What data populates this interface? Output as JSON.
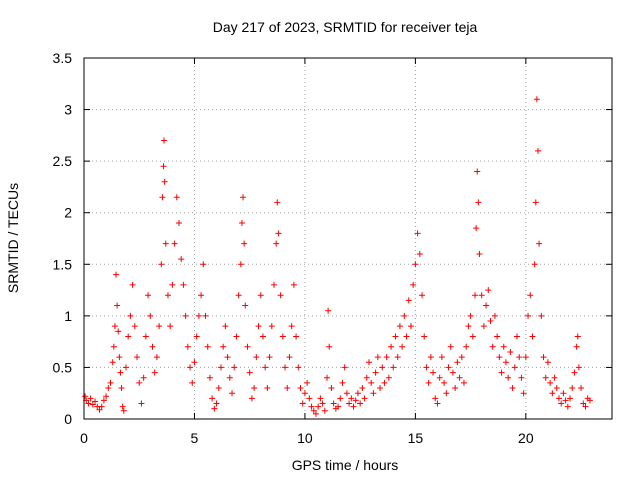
{
  "colors": {
    "series": "#ff0000",
    "frame": "#000000",
    "grid": "#a0a0a0"
  },
  "chart_data": {
    "type": "scatter",
    "title": "Day 217 of 2023, SRMTID for receiver teja",
    "xlabel": "GPS time / hours",
    "ylabel": "SRMTID / TECUs",
    "xlim": [
      0,
      23.9
    ],
    "ylim": [
      0,
      3.5
    ],
    "x_ticks": [
      0,
      5,
      10,
      15,
      20
    ],
    "x_tick_labels": [
      "0",
      "5",
      "10",
      "15",
      "20"
    ],
    "y_ticks": [
      0,
      0.5,
      1,
      1.5,
      2,
      2.5,
      3,
      3.5
    ],
    "y_tick_labels": [
      "0",
      "0.5",
      "1",
      "1.5",
      "2",
      "2.5",
      "3",
      "3.5"
    ],
    "grid": true,
    "marker": "plus",
    "series": [
      {
        "name": "SRMTID",
        "points": [
          [
            0.05,
            0.22
          ],
          [
            0.1,
            0.18
          ],
          [
            0.2,
            0.15
          ],
          [
            0.3,
            0.2
          ],
          [
            0.4,
            0.14
          ],
          [
            0.5,
            0.17
          ],
          [
            0.6,
            0.12
          ],
          [
            0.7,
            0.09
          ],
          [
            0.8,
            0.12
          ],
          [
            0.9,
            0.18
          ],
          [
            1.0,
            0.22
          ],
          [
            1.1,
            0.3
          ],
          [
            1.2,
            0.35
          ],
          [
            1.3,
            0.55
          ],
          [
            1.35,
            0.7
          ],
          [
            1.4,
            0.9
          ],
          [
            1.45,
            1.4
          ],
          [
            1.5,
            1.1
          ],
          [
            1.55,
            0.85
          ],
          [
            1.6,
            0.6
          ],
          [
            1.65,
            0.45
          ],
          [
            1.7,
            0.3
          ],
          [
            1.75,
            0.12
          ],
          [
            1.8,
            0.08
          ],
          [
            1.9,
            0.5
          ],
          [
            2.0,
            0.8
          ],
          [
            2.1,
            1.0
          ],
          [
            2.2,
            1.3
          ],
          [
            2.3,
            0.9
          ],
          [
            2.4,
            0.6
          ],
          [
            2.5,
            0.35
          ],
          [
            2.6,
            0.15
          ],
          [
            2.7,
            0.4
          ],
          [
            2.8,
            0.8
          ],
          [
            2.9,
            1.2
          ],
          [
            3.0,
            1.0
          ],
          [
            3.1,
            0.7
          ],
          [
            3.2,
            0.45
          ],
          [
            3.3,
            0.6
          ],
          [
            3.4,
            0.9
          ],
          [
            3.5,
            1.5
          ],
          [
            3.55,
            2.15
          ],
          [
            3.6,
            2.45
          ],
          [
            3.62,
            2.7
          ],
          [
            3.65,
            2.3
          ],
          [
            3.7,
            1.7
          ],
          [
            3.8,
            1.2
          ],
          [
            3.9,
            0.9
          ],
          [
            4.0,
            1.3
          ],
          [
            4.1,
            1.7
          ],
          [
            4.2,
            2.15
          ],
          [
            4.3,
            1.9
          ],
          [
            4.4,
            1.55
          ],
          [
            4.5,
            1.3
          ],
          [
            4.6,
            1.0
          ],
          [
            4.7,
            0.7
          ],
          [
            4.8,
            0.5
          ],
          [
            4.9,
            0.35
          ],
          [
            5.0,
            0.55
          ],
          [
            5.1,
            0.8
          ],
          [
            5.2,
            1.0
          ],
          [
            5.3,
            1.2
          ],
          [
            5.4,
            1.5
          ],
          [
            5.5,
            1.0
          ],
          [
            5.6,
            0.7
          ],
          [
            5.7,
            0.4
          ],
          [
            5.8,
            0.2
          ],
          [
            5.9,
            0.1
          ],
          [
            6.0,
            0.15
          ],
          [
            6.1,
            0.3
          ],
          [
            6.2,
            0.5
          ],
          [
            6.3,
            0.7
          ],
          [
            6.4,
            0.9
          ],
          [
            6.5,
            0.6
          ],
          [
            6.6,
            0.4
          ],
          [
            6.7,
            0.25
          ],
          [
            6.8,
            0.5
          ],
          [
            6.9,
            0.8
          ],
          [
            7.0,
            1.2
          ],
          [
            7.1,
            1.5
          ],
          [
            7.15,
            1.9
          ],
          [
            7.2,
            2.15
          ],
          [
            7.25,
            1.7
          ],
          [
            7.3,
            1.1
          ],
          [
            7.4,
            0.7
          ],
          [
            7.5,
            0.45
          ],
          [
            7.6,
            0.2
          ],
          [
            7.7,
            0.3
          ],
          [
            7.8,
            0.6
          ],
          [
            7.9,
            0.9
          ],
          [
            8.0,
            1.2
          ],
          [
            8.1,
            0.8
          ],
          [
            8.2,
            0.5
          ],
          [
            8.3,
            0.3
          ],
          [
            8.4,
            0.6
          ],
          [
            8.5,
            0.9
          ],
          [
            8.6,
            1.3
          ],
          [
            8.7,
            1.7
          ],
          [
            8.75,
            2.1
          ],
          [
            8.8,
            1.8
          ],
          [
            8.9,
            1.2
          ],
          [
            9.0,
            0.8
          ],
          [
            9.1,
            0.5
          ],
          [
            9.2,
            0.3
          ],
          [
            9.3,
            0.6
          ],
          [
            9.4,
            0.9
          ],
          [
            9.5,
            1.3
          ],
          [
            9.6,
            0.8
          ],
          [
            9.7,
            0.5
          ],
          [
            9.8,
            0.3
          ],
          [
            9.9,
            0.15
          ],
          [
            10.0,
            0.25
          ],
          [
            10.1,
            0.35
          ],
          [
            10.2,
            0.2
          ],
          [
            10.3,
            0.12
          ],
          [
            10.4,
            0.08
          ],
          [
            10.5,
            0.05
          ],
          [
            10.6,
            0.12
          ],
          [
            10.7,
            0.2
          ],
          [
            10.8,
            0.15
          ],
          [
            10.9,
            0.08
          ],
          [
            11.0,
            0.4
          ],
          [
            11.05,
            1.05
          ],
          [
            11.1,
            0.7
          ],
          [
            11.2,
            0.3
          ],
          [
            11.3,
            0.15
          ],
          [
            11.4,
            0.1
          ],
          [
            11.5,
            0.12
          ],
          [
            11.6,
            0.2
          ],
          [
            11.7,
            0.35
          ],
          [
            11.8,
            0.5
          ],
          [
            11.9,
            0.25
          ],
          [
            12.0,
            0.15
          ],
          [
            12.1,
            0.2
          ],
          [
            12.2,
            0.12
          ],
          [
            12.3,
            0.18
          ],
          [
            12.4,
            0.25
          ],
          [
            12.5,
            0.15
          ],
          [
            12.6,
            0.3
          ],
          [
            12.7,
            0.2
          ],
          [
            12.8,
            0.4
          ],
          [
            12.9,
            0.55
          ],
          [
            13.0,
            0.35
          ],
          [
            13.1,
            0.25
          ],
          [
            13.2,
            0.45
          ],
          [
            13.3,
            0.6
          ],
          [
            13.4,
            0.3
          ],
          [
            13.5,
            0.5
          ],
          [
            13.6,
            0.35
          ],
          [
            13.7,
            0.6
          ],
          [
            13.8,
            0.4
          ],
          [
            13.9,
            0.7
          ],
          [
            14.0,
            0.5
          ],
          [
            14.1,
            0.8
          ],
          [
            14.2,
            0.6
          ],
          [
            14.3,
            0.9
          ],
          [
            14.4,
            0.7
          ],
          [
            14.5,
            1.0
          ],
          [
            14.6,
            0.8
          ],
          [
            14.7,
            1.15
          ],
          [
            14.8,
            0.9
          ],
          [
            14.9,
            1.3
          ],
          [
            15.0,
            1.5
          ],
          [
            15.1,
            1.8
          ],
          [
            15.2,
            1.6
          ],
          [
            15.3,
            1.2
          ],
          [
            15.4,
            0.8
          ],
          [
            15.5,
            0.5
          ],
          [
            15.6,
            0.35
          ],
          [
            15.7,
            0.6
          ],
          [
            15.8,
            0.45
          ],
          [
            15.9,
            0.2
          ],
          [
            16.0,
            0.15
          ],
          [
            16.1,
            0.4
          ],
          [
            16.2,
            0.6
          ],
          [
            16.3,
            0.35
          ],
          [
            16.4,
            0.25
          ],
          [
            16.5,
            0.5
          ],
          [
            16.6,
            0.7
          ],
          [
            16.7,
            0.45
          ],
          [
            16.8,
            0.3
          ],
          [
            16.9,
            0.55
          ],
          [
            17.0,
            0.4
          ],
          [
            17.1,
            0.6
          ],
          [
            17.2,
            0.35
          ],
          [
            17.3,
            0.7
          ],
          [
            17.4,
            0.9
          ],
          [
            17.5,
            1.0
          ],
          [
            17.6,
            0.8
          ],
          [
            17.7,
            1.2
          ],
          [
            17.75,
            1.85
          ],
          [
            17.8,
            2.4
          ],
          [
            17.85,
            2.1
          ],
          [
            17.9,
            1.6
          ],
          [
            18.0,
            1.2
          ],
          [
            18.1,
            0.9
          ],
          [
            18.2,
            1.1
          ],
          [
            18.3,
            1.25
          ],
          [
            18.4,
            0.95
          ],
          [
            18.5,
            0.7
          ],
          [
            18.6,
            1.0
          ],
          [
            18.7,
            0.8
          ],
          [
            18.8,
            0.6
          ],
          [
            18.9,
            0.45
          ],
          [
            19.0,
            0.7
          ],
          [
            19.1,
            0.55
          ],
          [
            19.2,
            0.4
          ],
          [
            19.3,
            0.65
          ],
          [
            19.4,
            0.3
          ],
          [
            19.5,
            0.5
          ],
          [
            19.6,
            0.8
          ],
          [
            19.7,
            0.6
          ],
          [
            19.8,
            0.4
          ],
          [
            19.9,
            0.25
          ],
          [
            20.0,
            0.6
          ],
          [
            20.1,
            1.0
          ],
          [
            20.2,
            1.2
          ],
          [
            20.3,
            0.8
          ],
          [
            20.4,
            1.5
          ],
          [
            20.45,
            2.1
          ],
          [
            20.5,
            3.1
          ],
          [
            20.55,
            2.6
          ],
          [
            20.6,
            1.7
          ],
          [
            20.7,
            1.0
          ],
          [
            20.8,
            0.6
          ],
          [
            20.9,
            0.4
          ],
          [
            21.0,
            0.55
          ],
          [
            21.1,
            0.35
          ],
          [
            21.2,
            0.25
          ],
          [
            21.3,
            0.4
          ],
          [
            21.4,
            0.3
          ],
          [
            21.5,
            0.2
          ],
          [
            21.6,
            0.15
          ],
          [
            21.7,
            0.25
          ],
          [
            21.8,
            0.18
          ],
          [
            21.9,
            0.12
          ],
          [
            22.0,
            0.2
          ],
          [
            22.1,
            0.3
          ],
          [
            22.2,
            0.45
          ],
          [
            22.3,
            0.7
          ],
          [
            22.35,
            0.8
          ],
          [
            22.4,
            0.5
          ],
          [
            22.5,
            0.3
          ],
          [
            22.6,
            0.15
          ],
          [
            22.7,
            0.12
          ],
          [
            22.8,
            0.2
          ],
          [
            22.9,
            0.18
          ]
        ]
      }
    ]
  }
}
